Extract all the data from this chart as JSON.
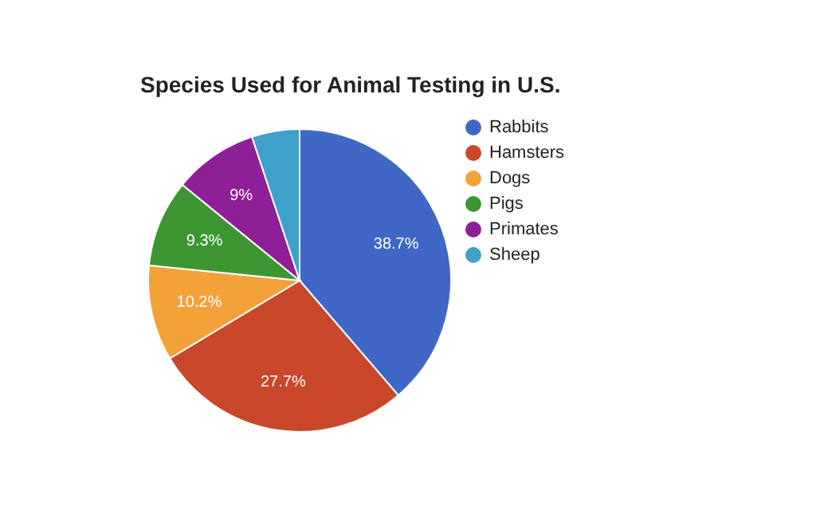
{
  "chart_data": {
    "type": "pie",
    "title": "Species Used for Animal Testing in U.S.",
    "categories": [
      "Rabbits",
      "Hamsters",
      "Dogs",
      "Pigs",
      "Primates",
      "Sheep"
    ],
    "values": [
      38.7,
      27.7,
      10.2,
      9.3,
      9,
      5.1
    ],
    "value_labels": [
      "38.7%",
      "27.7%",
      "10.2%",
      "9.3%",
      "9%",
      null
    ],
    "colors": [
      "#3f67c6",
      "#c9472a",
      "#f3a23a",
      "#3e9633",
      "#8e1f96",
      "#3fa0c9"
    ],
    "legend": "right"
  }
}
